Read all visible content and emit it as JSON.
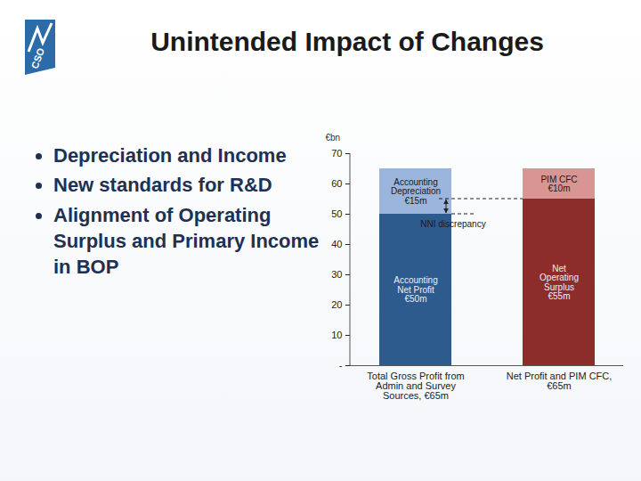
{
  "title": "Unintended Impact of Changes",
  "logo": "CSO",
  "bullets": [
    "Depreciation and Income",
    "New standards for R&D",
    "Alignment of Operating Surplus and Primary Income in BOP"
  ],
  "chart_data": {
    "type": "bar",
    "stacked": true,
    "y_label": "€bn",
    "categories": [
      "Total Gross Profit from Admin and Survey Sources, €65m",
      "Net Profit and PIM CFC, €65m"
    ],
    "series": [
      {
        "name": "Accounting\nNet Profit\n€50m",
        "color": "#2e5b8e",
        "values": [
          50,
          null
        ]
      },
      {
        "name": "Accounting\nDepreciation\n€15m",
        "color": "#9bb5dd",
        "values": [
          15,
          null
        ]
      },
      {
        "name": "Net\nOperating\nSurplus\n€55m",
        "color": "#8c2d2b",
        "values": [
          null,
          55
        ]
      },
      {
        "name": "PIM CFC\n€10m",
        "color": "#d99594",
        "values": [
          null,
          10
        ]
      }
    ],
    "ylim": [
      0,
      70
    ],
    "yticks": [
      {
        "value": 0,
        "label": "-"
      },
      10,
      20,
      30,
      40,
      50,
      60,
      70
    ],
    "data_labels": true,
    "annotations": [
      {
        "text": "NNI discrepancy",
        "between": [
          50,
          55
        ]
      }
    ]
  }
}
